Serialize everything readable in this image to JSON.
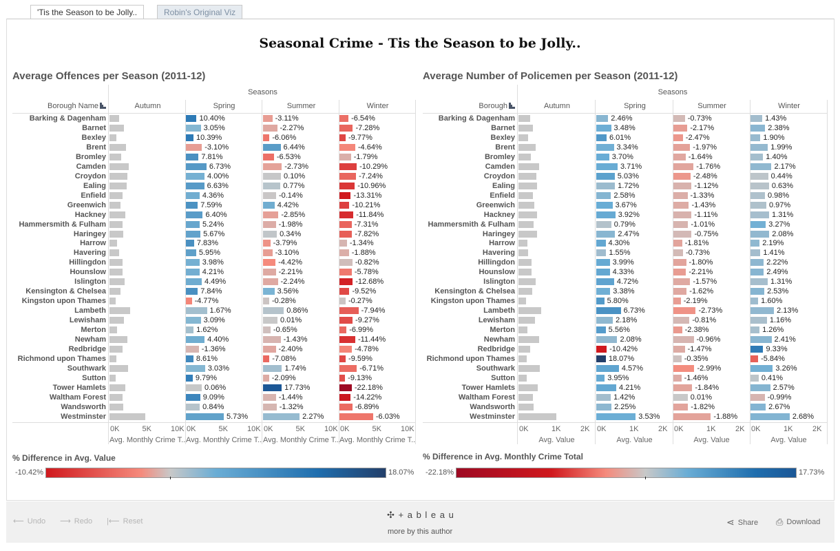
{
  "tabs": [
    {
      "label": "'Tis the Season to be Jolly.."
    },
    {
      "label": "Robin's Original Viz"
    }
  ],
  "dashboard_title": "Seasonal Crime - Tis the Season to be Jolly..",
  "colors": {
    "neg_dark": "#9e0a23",
    "neg": "#d0191e",
    "neg_light": "#f58a7c",
    "neutral": "#c8c8c8",
    "pos_light": "#6aadd5",
    "pos": "#1f6eae",
    "pos_dark": "#233f6a"
  },
  "boroughs": [
    "Barking & Dagenham",
    "Barnet",
    "Bexley",
    "Brent",
    "Bromley",
    "Camden",
    "Croydon",
    "Ealing",
    "Enfield",
    "Greenwich",
    "Hackney",
    "Hammersmith & Fulham",
    "Haringey",
    "Harrow",
    "Havering",
    "Hillingdon",
    "Hounslow",
    "Islington",
    "Kensington & Chelsea",
    "Kingston upon Thames",
    "Lambeth",
    "Lewisham",
    "Merton",
    "Newham",
    "Redbridge",
    "Richmond upon Thames",
    "Southwark",
    "Sutton",
    "Tower Hamlets",
    "Waltham Forest",
    "Wandsworth",
    "Westminster"
  ],
  "chart_data": [
    {
      "type": "bar",
      "title": "Average Offences per Season (2011-12)",
      "column_header": "Seasons",
      "row_header": "Borough Name",
      "seasons": [
        "Autumn",
        "Spring",
        "Summer",
        "Winter"
      ],
      "xlabel": "Avg. Monthly Crime T..",
      "ticks": [
        "0K",
        "5K",
        "10K"
      ],
      "xlim": [
        0,
        10500
      ],
      "autumn_avg": [
        1400,
        2100,
        1000,
        2400,
        1700,
        2800,
        2600,
        2500,
        1900,
        1600,
        2300,
        1900,
        2000,
        1100,
        1400,
        1900,
        1900,
        2200,
        1600,
        900,
        3000,
        2100,
        1100,
        2600,
        1900,
        1000,
        2700,
        900,
        2300,
        1900,
        2000,
        5200
      ],
      "pct_diff": {
        "Spring": [
          10.4,
          3.05,
          10.39,
          -3.1,
          7.81,
          6.73,
          4.0,
          6.63,
          4.36,
          7.59,
          6.4,
          5.24,
          5.67,
          7.83,
          5.95,
          3.98,
          4.21,
          4.49,
          7.84,
          -4.77,
          1.67,
          3.09,
          1.62,
          4.4,
          -1.36,
          8.61,
          3.03,
          9.79,
          0.06,
          9.09,
          0.84,
          5.73
        ],
        "Summer": [
          -3.11,
          -2.27,
          -6.06,
          6.44,
          -6.53,
          -2.73,
          0.1,
          0.77,
          -0.14,
          4.42,
          -2.85,
          -1.98,
          0.34,
          -3.79,
          -3.1,
          -4.42,
          -2.21,
          -2.24,
          3.56,
          -0.28,
          0.86,
          0.01,
          -0.65,
          -1.43,
          -2.4,
          -7.08,
          1.74,
          -2.09,
          17.73,
          -1.44,
          -1.32,
          2.27
        ],
        "Winter": [
          -6.54,
          -7.28,
          -9.77,
          -4.64,
          -1.79,
          -10.29,
          -7.24,
          -10.96,
          -13.31,
          -10.21,
          -11.84,
          -7.31,
          -7.82,
          -1.34,
          -1.88,
          -0.82,
          -5.78,
          -12.68,
          -9.52,
          -0.27,
          -7.94,
          -9.27,
          -6.99,
          -11.44,
          -4.78,
          -9.59,
          -6.71,
          -9.13,
          -22.18,
          -14.22,
          -6.89,
          -6.03
        ]
      },
      "color_range": [
        -22.18,
        17.73
      ]
    },
    {
      "type": "bar",
      "title": "Average Number of Policemen per Season (2011-12)",
      "column_header": "Seasons",
      "row_header": "Borough",
      "seasons": [
        "Autumn",
        "Spring",
        "Summer",
        "Winter"
      ],
      "xlabel": "Avg. Value",
      "ticks": [
        "0K",
        "1K",
        "2K"
      ],
      "xlim": [
        0,
        2700
      ],
      "autumn_avg": [
        430,
        530,
        360,
        630,
        460,
        760,
        650,
        680,
        530,
        580,
        680,
        550,
        680,
        330,
        360,
        480,
        480,
        630,
        500,
        280,
        850,
        600,
        330,
        760,
        430,
        300,
        800,
        300,
        710,
        530,
        550,
        1410
      ],
      "pct_diff": {
        "Spring": [
          2.46,
          3.48,
          6.01,
          3.34,
          3.7,
          3.71,
          5.03,
          1.72,
          2.58,
          3.67,
          3.92,
          0.79,
          2.47,
          4.3,
          1.55,
          3.99,
          4.33,
          4.72,
          3.38,
          5.8,
          6.73,
          2.18,
          5.56,
          2.08,
          -10.42,
          18.07,
          4.57,
          3.95,
          4.21,
          1.42,
          2.25,
          3.53
        ],
        "Summer": [
          -0.73,
          -2.17,
          -2.47,
          -1.97,
          -1.64,
          -1.76,
          -2.48,
          -1.12,
          -1.33,
          -1.43,
          -1.11,
          -1.01,
          -0.75,
          -1.81,
          -0.73,
          -1.8,
          -2.21,
          -1.57,
          -1.62,
          -2.19,
          -2.73,
          -0.81,
          -2.38,
          -0.96,
          -1.47,
          -0.35,
          -2.99,
          -1.46,
          -1.84,
          0.01,
          -1.82,
          -1.88
        ],
        "Winter": [
          1.43,
          2.38,
          1.9,
          1.99,
          1.4,
          2.17,
          0.44,
          0.63,
          0.98,
          0.97,
          1.31,
          3.27,
          2.08,
          2.19,
          1.41,
          2.22,
          2.49,
          1.31,
          2.53,
          1.6,
          2.13,
          1.16,
          1.26,
          2.41,
          9.33,
          -5.84,
          3.26,
          0.41,
          2.57,
          -0.99,
          2.67,
          2.68
        ]
      },
      "color_range": [
        -10.42,
        18.07
      ]
    }
  ],
  "legends": [
    {
      "title": "% Difference in Avg. Value",
      "min": "-10.42%",
      "max": "18.07%"
    },
    {
      "title": "% Difference in Avg. Monthly Crime Total",
      "min": "-22.18%",
      "max": "17.73%"
    }
  ],
  "toolbar": {
    "undo": "Undo",
    "redo": "Redo",
    "reset": "Reset",
    "logo": "+ a b l e a u",
    "more": "more by this author",
    "share": "Share",
    "download": "Download"
  }
}
